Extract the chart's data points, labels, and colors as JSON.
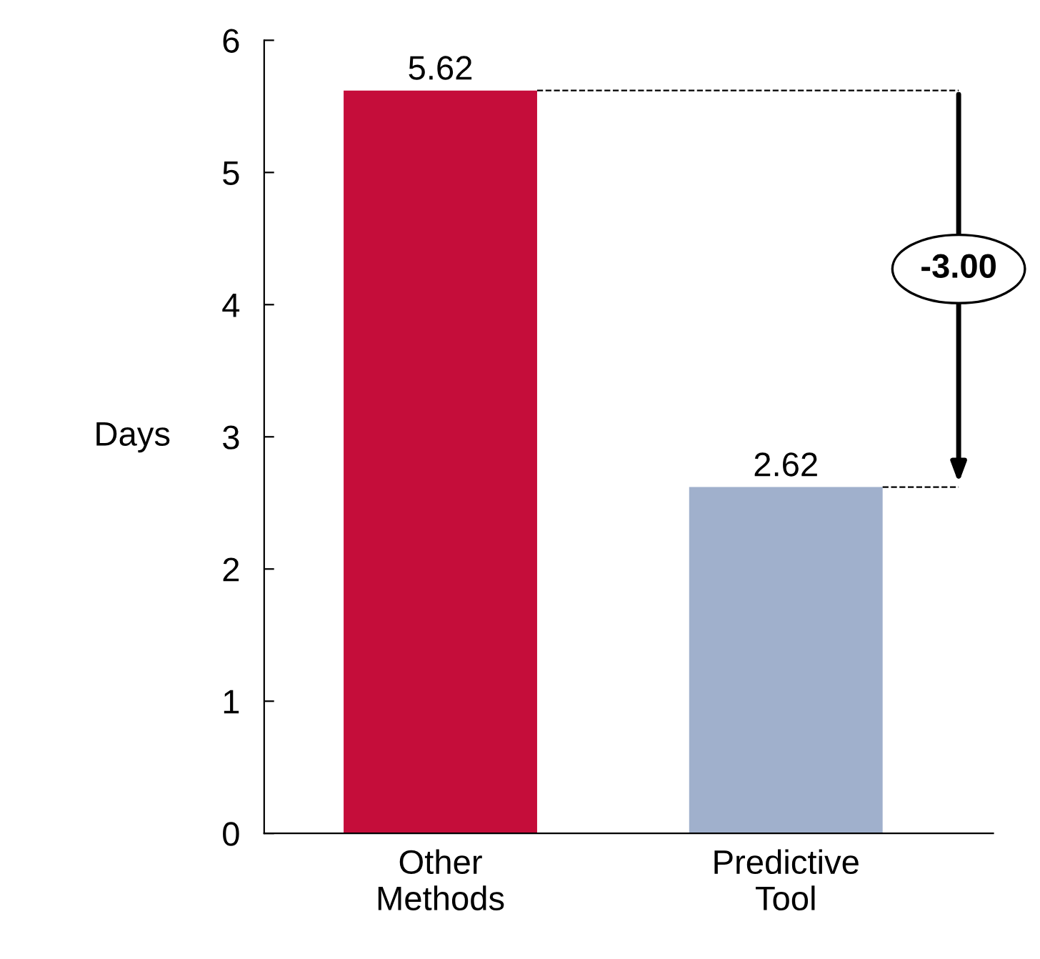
{
  "chart_data": {
    "type": "bar",
    "categories": [
      "Other\nMethods",
      "Predictive\nTool"
    ],
    "values": [
      5.62,
      2.62
    ],
    "colors": [
      "#c50d3a",
      "#a0b0cc"
    ],
    "ylabel": "Days",
    "ylim": [
      0,
      6
    ],
    "yticks": [
      0,
      1,
      2,
      3,
      4,
      5,
      6
    ],
    "data_labels": true,
    "grid": false,
    "annotations": [
      "-3.00"
    ],
    "ref_lines": [
      {
        "axis": "y",
        "value": 5.62,
        "color": "#000000",
        "line_style": "dashed"
      },
      {
        "axis": "y",
        "value": 2.62,
        "color": "#000000",
        "line_style": "dashed"
      }
    ]
  }
}
